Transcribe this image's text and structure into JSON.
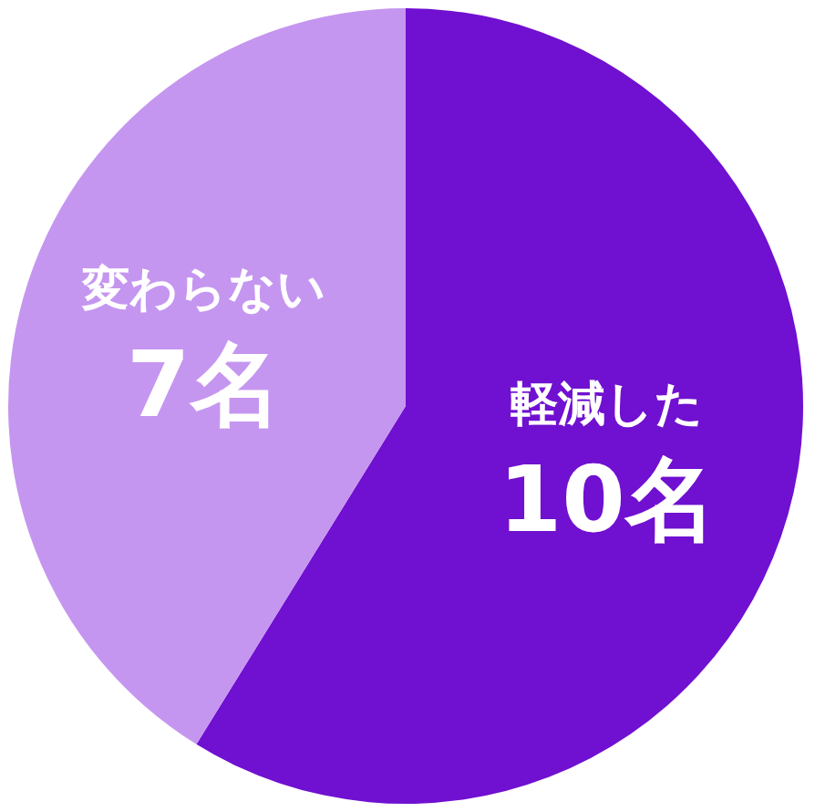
{
  "chart_data": {
    "type": "pie",
    "categories": [
      "軽減した",
      "変わらない"
    ],
    "values": [
      10,
      7
    ],
    "value_labels": [
      "10名",
      "7名"
    ],
    "colors": [
      "#7010d0",
      "#c596f0"
    ],
    "legend": false
  }
}
